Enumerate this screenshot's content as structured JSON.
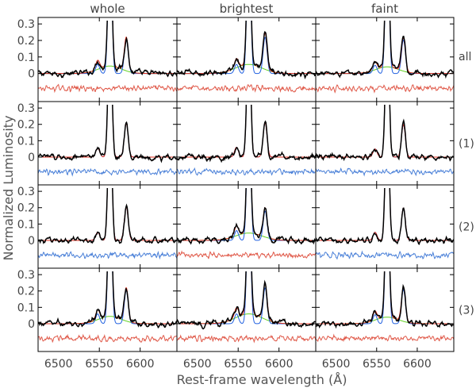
{
  "figure": {
    "ylabel": "Normalized Luminosity",
    "xlabel": "Rest-frame wavelength (Å)",
    "column_titles": [
      "whole",
      "brightest",
      "faint"
    ],
    "row_labels": [
      "all",
      "(1)",
      "(2)",
      "(3)"
    ],
    "x_ticks": [
      "6550",
      "6600"
    ],
    "x_tick_values": [
      6550,
      6600
    ],
    "x_tick_labels": [
      "6500",
      "6550",
      "6600"
    ],
    "x_tick_label_values": [
      6500,
      6550,
      6600
    ],
    "y_ticks": [
      "0",
      "0.1",
      "0.2",
      "0.3"
    ]
  },
  "chart_data": {
    "type": "line",
    "layout": "4 rows x 3 columns of spectra panels",
    "xlim": [
      6475,
      6645
    ],
    "ylim": [
      -0.17,
      0.32
    ],
    "line_centers": {
      "NII_6548": 6548,
      "H_alpha": 6563,
      "NII_6583": 6583
    },
    "series_styles": {
      "observed": "#000000",
      "total_model": "#e03020",
      "narrow_components": "#2060e0",
      "broad_component": "#60d020",
      "residual_red": "#e05a4a",
      "residual_blue": "#4a80d8"
    },
    "residual_offset": -0.09,
    "panels": [
      {
        "row": "all",
        "column": "whole",
        "n2_6548": 0.055,
        "n2_6583": 0.205,
        "broad_amp": 0.045,
        "broad_sigma": 14,
        "residual_color": "residual_red"
      },
      {
        "row": "all",
        "column": "brightest",
        "n2_6548": 0.055,
        "n2_6583": 0.22,
        "broad_amp": 0.055,
        "broad_sigma": 16,
        "residual_color": "residual_red"
      },
      {
        "row": "all",
        "column": "faint",
        "n2_6548": 0.05,
        "n2_6583": 0.205,
        "broad_amp": 0.04,
        "broad_sigma": 14,
        "residual_color": "residual_red"
      },
      {
        "row": "(1)",
        "column": "whole",
        "n2_6548": 0.055,
        "n2_6583": 0.205,
        "broad_amp": 0,
        "broad_sigma": 14,
        "residual_color": "residual_blue"
      },
      {
        "row": "(1)",
        "column": "brightest",
        "n2_6548": 0.06,
        "n2_6583": 0.21,
        "broad_amp": 0,
        "broad_sigma": 14,
        "residual_color": "residual_blue"
      },
      {
        "row": "(1)",
        "column": "faint",
        "n2_6548": 0.05,
        "n2_6583": 0.2,
        "broad_amp": 0,
        "broad_sigma": 14,
        "residual_color": "residual_blue"
      },
      {
        "row": "(2)",
        "column": "whole",
        "n2_6548": 0.05,
        "n2_6583": 0.205,
        "broad_amp": 0,
        "broad_sigma": 14,
        "residual_color": "residual_blue"
      },
      {
        "row": "(2)",
        "column": "brightest",
        "n2_6548": 0.06,
        "n2_6583": 0.18,
        "broad_amp": 0.045,
        "broad_sigma": 16,
        "residual_color": "residual_red"
      },
      {
        "row": "(2)",
        "column": "faint",
        "n2_6548": 0.05,
        "n2_6583": 0.2,
        "broad_amp": 0,
        "broad_sigma": 14,
        "residual_color": "residual_blue"
      },
      {
        "row": "(3)",
        "column": "whole",
        "n2_6548": 0.06,
        "n2_6583": 0.205,
        "broad_amp": 0.045,
        "broad_sigma": 14,
        "residual_color": "residual_red"
      },
      {
        "row": "(3)",
        "column": "brightest",
        "n2_6548": 0.06,
        "n2_6583": 0.22,
        "broad_amp": 0.06,
        "broad_sigma": 16,
        "residual_color": "residual_red"
      },
      {
        "row": "(3)",
        "column": "faint",
        "n2_6548": 0.055,
        "n2_6583": 0.21,
        "broad_amp": 0.04,
        "broad_sigma": 14,
        "residual_color": "residual_red"
      }
    ]
  }
}
